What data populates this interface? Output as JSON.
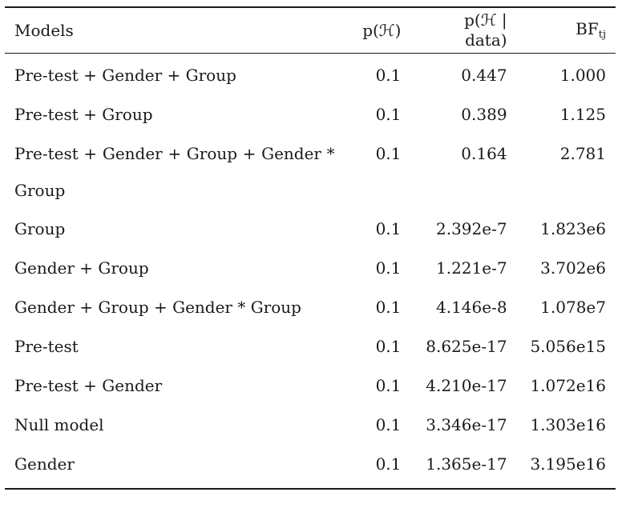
{
  "table": {
    "headers": {
      "models": "Models",
      "prior": "p(ℋ)",
      "posterior": "p(ℋ | data)",
      "bf_main": "BF",
      "bf_sub": "tj"
    },
    "rows": [
      {
        "model": "Pre-test + Gender + Group",
        "prior": "0.1",
        "posterior": "0.447",
        "bf": "1.000"
      },
      {
        "model": "Pre-test + Group",
        "prior": "0.1",
        "posterior": "0.389",
        "bf": "1.125"
      },
      {
        "model": "Pre-test + Gender + Group + Gender * Group",
        "prior": "0.1",
        "posterior": "0.164",
        "bf": "2.781"
      },
      {
        "model": "Group",
        "prior": "0.1",
        "posterior": "2.392e-7",
        "bf": "1.823e6"
      },
      {
        "model": "Gender + Group",
        "prior": "0.1",
        "posterior": "1.221e-7",
        "bf": "3.702e6"
      },
      {
        "model": "Gender + Group + Gender * Group",
        "prior": "0.1",
        "posterior": "4.146e-8",
        "bf": "1.078e7"
      },
      {
        "model": "Pre-test",
        "prior": "0.1",
        "posterior": "8.625e-17",
        "bf": "5.056e15"
      },
      {
        "model": "Pre-test + Gender",
        "prior": "0.1",
        "posterior": "4.210e-17",
        "bf": "1.072e16"
      },
      {
        "model": "Null model",
        "prior": "0.1",
        "posterior": "3.346e-17",
        "bf": "1.303e16"
      },
      {
        "model": "Gender",
        "prior": "0.1",
        "posterior": "1.365e-17",
        "bf": "3.195e16"
      }
    ]
  }
}
